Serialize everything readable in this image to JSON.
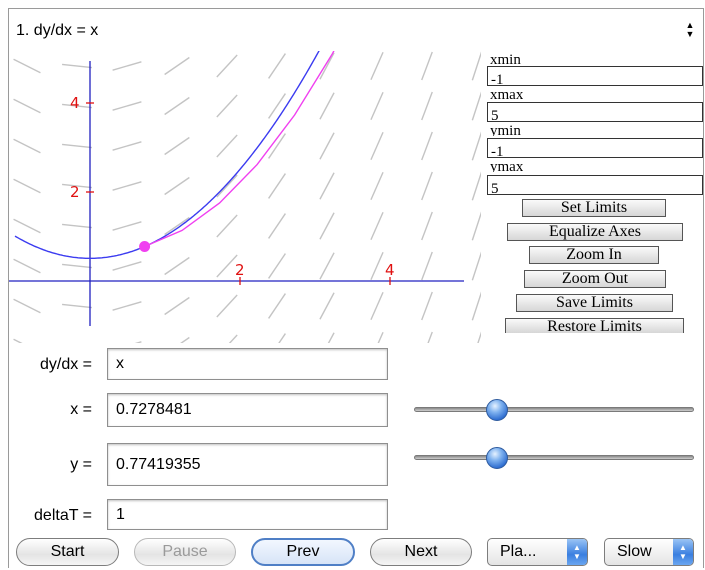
{
  "problem": {
    "label": "1. dy/dx = x"
  },
  "limits": {
    "xmin": {
      "label": "xmin",
      "value": "-1"
    },
    "xmax": {
      "label": "xmax",
      "value": "5"
    },
    "ymin": {
      "label": "ymin",
      "value": "-1"
    },
    "ymax": {
      "label": "ymax",
      "value": "5"
    }
  },
  "limit_buttons": {
    "set": "Set Limits",
    "equalize": "Equalize Axes",
    "zoom_in": "Zoom In",
    "zoom_out": "Zoom Out",
    "save": "Save Limits",
    "restore": "Restore Limits"
  },
  "plot": {
    "x_ticks": [
      "2",
      "4"
    ],
    "y_ticks": [
      "2",
      "4"
    ],
    "colors": {
      "solution": "#3b3bf0",
      "euler": "#f040f0",
      "tick": "#e01010",
      "axis": "#2020c0",
      "field": "#c4c4c4"
    }
  },
  "inputs": {
    "dydx": {
      "label": "dy/dx =",
      "value": "x"
    },
    "x": {
      "label": "x =",
      "value": "0.7278481",
      "slider": 0.28
    },
    "y": {
      "label": "y =",
      "value": "0.77419355",
      "slider": 0.28
    },
    "deltaT": {
      "label": "deltaT =",
      "value": "1"
    }
  },
  "controls": {
    "start": "Start",
    "pause": "Pause",
    "prev": "Prev",
    "next": "Next",
    "mode": "Pla...",
    "speed": "Slow"
  }
}
